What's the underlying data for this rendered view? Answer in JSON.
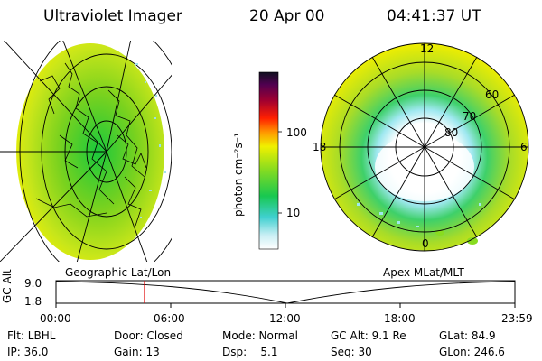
{
  "header": {
    "instrument": "Ultraviolet Imager",
    "date": "20 Apr 00",
    "time": "04:41:37 UT"
  },
  "colorbar": {
    "unit_label": "photon cm⁻²s⁻¹",
    "ticks": [
      "100",
      "10"
    ],
    "scale": "log"
  },
  "polar_plot": {
    "mlt_labels": {
      "top": "12",
      "left": "18",
      "right": "6",
      "bottom": "0"
    },
    "mlat_labels": [
      "60",
      "70",
      "80"
    ]
  },
  "timeline": {
    "axis_label": "GC Alt",
    "y_top": "9.0",
    "y_bottom": "1.8",
    "left_caption": "Geographic Lat/Lon",
    "right_caption": "Apex MLat/MLT",
    "x_ticks": [
      "00:00",
      "06:00",
      "12:00",
      "18:00",
      "23:59"
    ],
    "marker_color": "#e00000"
  },
  "status": {
    "row1": [
      "Flt: LBHL",
      "Door: Closed",
      "Mode: Normal",
      "GC Alt: 9.1 Re",
      "GLat:  84.9"
    ],
    "row2": [
      "IP: 36.0",
      "Gain: 13",
      "Dsp:    5.1",
      "Seq: 30",
      "GLon: 246.6"
    ]
  }
}
